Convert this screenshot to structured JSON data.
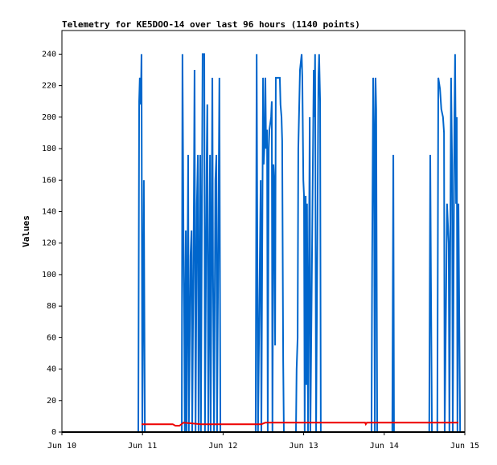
{
  "chart_data": {
    "type": "line",
    "title": "Telemetry for KE5DOO-14 over last 96 hours (1140 points)",
    "y_label": "Values",
    "xlim": [
      0,
      120
    ],
    "xticks": [
      {
        "value": 0,
        "label": "Jun 10"
      },
      {
        "value": 24,
        "label": "Jun 11"
      },
      {
        "value": 48,
        "label": "Jun 12"
      },
      {
        "value": 72,
        "label": "Jun 13"
      },
      {
        "value": 96,
        "label": "Jun 14"
      },
      {
        "value": 120,
        "label": "Jun 15"
      }
    ],
    "ylim": [
      0,
      255
    ],
    "yticks": [
      0,
      20,
      40,
      60,
      80,
      100,
      120,
      140,
      160,
      180,
      200,
      220,
      240
    ],
    "grid": false,
    "series": [
      {
        "color": "#0066cc",
        "x": [
          22.75,
          23.0,
          23.2,
          23.5,
          23.7,
          23.95,
          24.4,
          24.7,
          35.7,
          35.9,
          36.2,
          36.4,
          36.6,
          36.9,
          37.1,
          37.6,
          37.8,
          38.3,
          38.6,
          38.8,
          39.3,
          39.5,
          39.8,
          40.2,
          40.5,
          40.7,
          41.2,
          41.4,
          41.9,
          42.4,
          42.6,
          43.1,
          43.3,
          43.6,
          44.1,
          44.3,
          44.8,
          45.0,
          45.3,
          45.7,
          46.0,
          46.2,
          46.9,
          47.2,
          57.7,
          58.0,
          58.2,
          58.4,
          58.9,
          59.2,
          59.4,
          59.9,
          60.1,
          60.4,
          60.6,
          60.8,
          61.1,
          61.3,
          61.6,
          61.8,
          62.3,
          62.5,
          62.7,
          63.0,
          63.2,
          63.5,
          63.7,
          64.9,
          65.1,
          65.4,
          65.6,
          65.9,
          66.1,
          69.7,
          69.9,
          70.2,
          70.4,
          70.7,
          70.9,
          71.4,
          71.6,
          71.9,
          72.1,
          72.3,
          72.6,
          72.8,
          73.0,
          73.3,
          73.8,
          74.0,
          75.0,
          75.2,
          75.4,
          75.7,
          76.4,
          76.6,
          76.9,
          77.1,
          92.2,
          92.4,
          92.7,
          92.9,
          93.2,
          93.4,
          93.6,
          93.9,
          98.4,
          98.7,
          98.9,
          109.4,
          109.7,
          109.9,
          110.2,
          111.8,
          112.1,
          112.6,
          113.0,
          113.5,
          113.8,
          114.0,
          114.7,
          115.0,
          115.2,
          115.4,
          115.9,
          116.2,
          116.4,
          116.9,
          117.1,
          117.4,
          117.6,
          117.8,
          118.1,
          118.6
        ],
        "values": [
          0,
          210,
          225,
          208,
          240,
          0,
          160,
          0,
          0,
          240,
          128,
          80,
          0,
          128,
          0,
          176,
          0,
          112,
          128,
          0,
          145,
          230,
          0,
          145,
          176,
          0,
          176,
          0,
          240,
          240,
          0,
          170,
          208,
          0,
          176,
          0,
          225,
          100,
          0,
          160,
          176,
          0,
          225,
          0,
          0,
          240,
          120,
          0,
          100,
          160,
          0,
          225,
          170,
          185,
          225,
          180,
          192,
          0,
          180,
          192,
          200,
          210,
          0,
          170,
          160,
          55,
          225,
          225,
          208,
          200,
          185,
          45,
          0,
          0,
          40,
          60,
          180,
          210,
          230,
          240,
          225,
          160,
          150,
          0,
          150,
          30,
          145,
          0,
          200,
          0,
          230,
          200,
          240,
          0,
          225,
          240,
          210,
          0,
          0,
          110,
          225,
          195,
          0,
          225,
          205,
          0,
          0,
          176,
          0,
          0,
          176,
          100,
          0,
          0,
          225,
          218,
          205,
          200,
          190,
          0,
          145,
          130,
          120,
          0,
          225,
          170,
          0,
          200,
          240,
          145,
          200,
          0,
          145,
          0
        ]
      },
      {
        "color": "#ee0000",
        "x": [
          23.7,
          33.0,
          33.8,
          35.0,
          36.2,
          41.4,
          59.4,
          60.6,
          90.3,
          90.5,
          90.8,
          118.1
        ],
        "values": [
          5,
          5,
          4,
          4,
          6,
          5,
          5,
          6,
          6,
          5,
          6,
          6
        ]
      }
    ]
  }
}
